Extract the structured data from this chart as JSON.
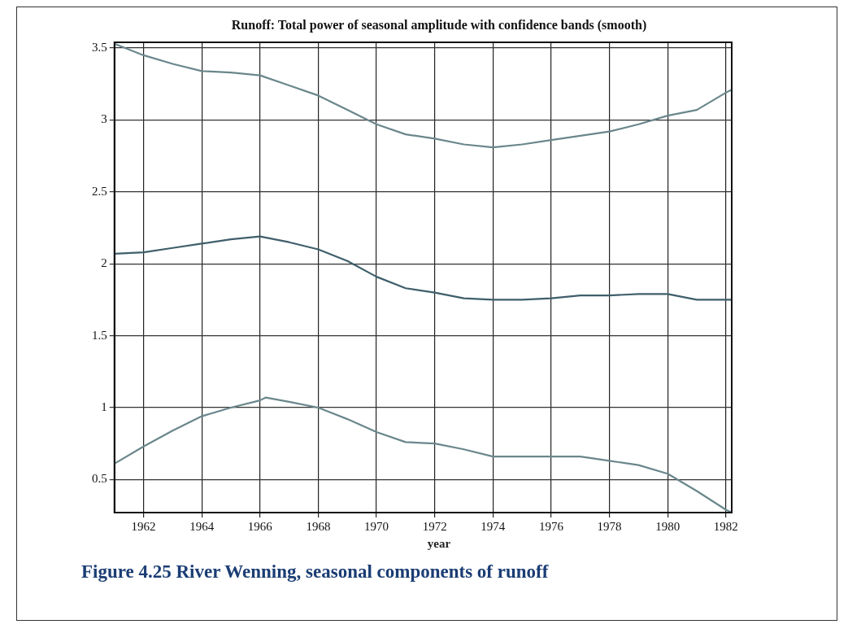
{
  "chart_data": {
    "type": "line",
    "title": "Runoff: Total power of seasonal amplitude with confidence bands (smooth)",
    "xlabel": "year",
    "annotations": [
      "Figure 4.25 River Wenning, seasonal components of runoff"
    ],
    "xlim": [
      1961,
      1982.2
    ],
    "xticks": [
      1962,
      1964,
      1966,
      1968,
      1970,
      1972,
      1974,
      1976,
      1978,
      1980,
      1982
    ],
    "ylim": [
      0.27,
      3.54
    ],
    "yticks": [
      0.5,
      1,
      1.5,
      2,
      2.5,
      3,
      3.5
    ],
    "grid": true,
    "legend": false,
    "marker": "none",
    "line_style": "solid",
    "series": [
      {
        "color": "#6a878c",
        "x": [
          1961,
          1962,
          1963,
          1964,
          1965,
          1966,
          1967,
          1968,
          1969,
          1970,
          1971,
          1972,
          1973,
          1974,
          1975,
          1976,
          1977,
          1978,
          1979,
          1980,
          1981,
          1982,
          1982.2
        ],
        "values": [
          3.53,
          3.45,
          3.39,
          3.34,
          3.33,
          3.31,
          3.24,
          3.17,
          3.07,
          2.97,
          2.9,
          2.87,
          2.83,
          2.81,
          2.83,
          2.86,
          2.89,
          2.92,
          2.97,
          3.03,
          3.07,
          3.19,
          3.21
        ]
      },
      {
        "color": "#3f5f6b",
        "x": [
          1961,
          1962,
          1963,
          1964,
          1965,
          1966,
          1967,
          1968,
          1969,
          1970,
          1971,
          1972,
          1973,
          1974,
          1975,
          1976,
          1977,
          1978,
          1979,
          1980,
          1981,
          1982,
          1982.2
        ],
        "values": [
          2.07,
          2.08,
          2.11,
          2.14,
          2.17,
          2.19,
          2.15,
          2.1,
          2.02,
          1.91,
          1.83,
          1.8,
          1.76,
          1.75,
          1.75,
          1.76,
          1.78,
          1.78,
          1.79,
          1.79,
          1.75,
          1.75,
          1.75
        ]
      },
      {
        "color": "#6a878c",
        "x": [
          1961,
          1962,
          1963,
          1964,
          1965,
          1966,
          1966.2,
          1967,
          1968,
          1969,
          1970,
          1971,
          1972,
          1973,
          1974,
          1975,
          1976,
          1977,
          1978,
          1979,
          1980,
          1981,
          1982,
          1982.2
        ],
        "values": [
          0.61,
          0.73,
          0.84,
          0.94,
          1.0,
          1.05,
          1.07,
          1.04,
          1.0,
          0.92,
          0.83,
          0.76,
          0.75,
          0.71,
          0.66,
          0.66,
          0.66,
          0.66,
          0.63,
          0.6,
          0.54,
          0.42,
          0.29,
          0.27
        ]
      }
    ]
  }
}
